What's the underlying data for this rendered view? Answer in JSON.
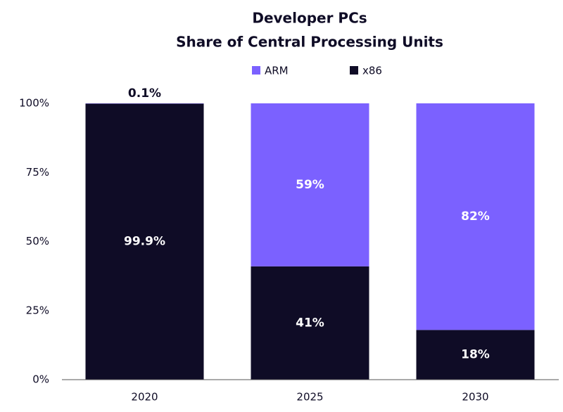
{
  "chart_data": {
    "type": "stacked-bar",
    "title": "Developer PCs",
    "subtitle": "Share of Central Processing Units",
    "categories": [
      "2020",
      "2025",
      "2030"
    ],
    "series": [
      {
        "name": "ARM",
        "color": "#7b61ff",
        "values": [
          0.1,
          59,
          82
        ],
        "value_labels": [
          "0.1%",
          "59%",
          "82%"
        ]
      },
      {
        "name": "x86",
        "color": "#0f0c26",
        "values": [
          99.9,
          41,
          18
        ],
        "value_labels": [
          "99.9%",
          "41%",
          "18%"
        ]
      }
    ],
    "ylim": [
      0,
      100
    ],
    "yticks": [
      {
        "value": 0,
        "label": "0%"
      },
      {
        "value": 25,
        "label": "25%"
      },
      {
        "value": 50,
        "label": "50%"
      },
      {
        "value": 75,
        "label": "75%"
      },
      {
        "value": 100,
        "label": "100%"
      }
    ],
    "grid": false
  }
}
